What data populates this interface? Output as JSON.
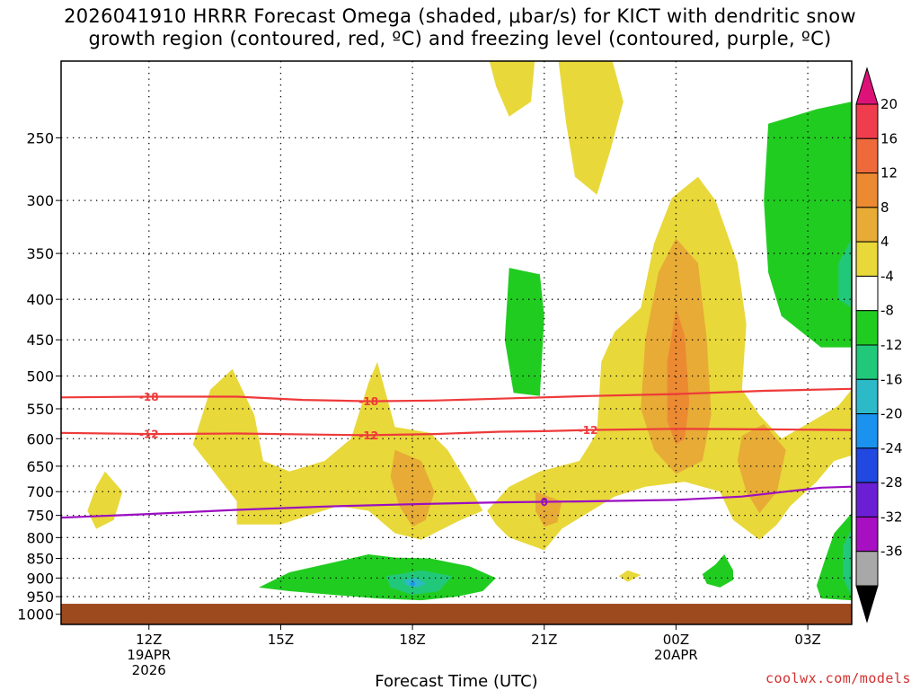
{
  "title_line1": "2026041910 HRRR Forecast Omega (shaded, μbar/s) for KICT with dendritic snow",
  "title_line2": "growth region (contoured, red, ºC) and freezing level (contoured, purple, ºC)",
  "credit": "coolwx.com/models",
  "chart_data": {
    "type": "heatmap",
    "xlabel": "Forecast Time (UTC)",
    "ylabel": "",
    "x_unit": "hours since 2026-04-19 10Z",
    "xlim": [
      0,
      18
    ],
    "y_unit": "hPa",
    "ylim": [
      1030,
      200
    ],
    "y_scale": "log",
    "y_ticks": [
      250,
      300,
      350,
      400,
      450,
      500,
      550,
      600,
      650,
      700,
      750,
      800,
      850,
      900,
      950,
      1000
    ],
    "x_ticks": [
      {
        "x": 2,
        "lines": [
          "12Z",
          "19APR",
          "2026"
        ]
      },
      {
        "x": 5,
        "lines": [
          "15Z"
        ]
      },
      {
        "x": 8,
        "lines": [
          "18Z"
        ]
      },
      {
        "x": 11,
        "lines": [
          "21Z"
        ]
      },
      {
        "x": 14,
        "lines": [
          "00Z",
          "20APR"
        ]
      },
      {
        "x": 17,
        "lines": [
          "03Z"
        ]
      }
    ],
    "colorbar": {
      "ticks": [
        20,
        16,
        12,
        8,
        4,
        -4,
        -8,
        -12,
        -16,
        -20,
        -24,
        -28,
        -32,
        -36
      ],
      "colors": [
        "#f03d4d",
        "#ee6a3b",
        "#ec8a32",
        "#e7ab36",
        "#e8d83a",
        "#ffffff",
        "#21cc21",
        "#22c87a",
        "#2cb9c8",
        "#1b92ee",
        "#2148e0",
        "#6b1fd4",
        "#a60fc2",
        "#a8a8a8"
      ],
      "top_arrow_color": "#dd1278",
      "bottom_arrow_color": "#000000"
    },
    "shaded_regions": [
      {
        "label": "4 to 8",
        "color": "#e8d83a",
        "polygon": [
          [
            1,
            660
          ],
          [
            1.4,
            700
          ],
          [
            1.2,
            760
          ],
          [
            0.8,
            780
          ],
          [
            0.6,
            740
          ],
          [
            0.8,
            690
          ]
        ]
      },
      {
        "label": "4 to 8",
        "color": "#e8d83a",
        "polygon": [
          [
            3,
            610
          ],
          [
            3.4,
            520
          ],
          [
            3.9,
            490
          ],
          [
            4.4,
            560
          ],
          [
            4.6,
            640
          ],
          [
            5.2,
            660
          ],
          [
            6,
            640
          ],
          [
            6.6,
            600
          ],
          [
            7,
            510
          ],
          [
            7.2,
            480
          ],
          [
            7.6,
            580
          ],
          [
            8.4,
            590
          ],
          [
            8.8,
            620
          ],
          [
            9.3,
            690
          ],
          [
            9.6,
            740
          ],
          [
            9.1,
            760
          ],
          [
            8.2,
            805
          ],
          [
            7.6,
            790
          ],
          [
            7,
            740
          ],
          [
            6.3,
            730
          ],
          [
            5,
            770
          ],
          [
            4,
            770
          ],
          [
            4,
            720
          ]
        ]
      },
      {
        "label": "4 to 8",
        "color": "#e8d83a",
        "polygon": [
          [
            9.7,
            740
          ],
          [
            10.2,
            690
          ],
          [
            10.9,
            660
          ],
          [
            11.8,
            640
          ],
          [
            12.2,
            590
          ],
          [
            12.3,
            480
          ],
          [
            12.6,
            440
          ],
          [
            13.2,
            410
          ],
          [
            13.5,
            340
          ],
          [
            13.9,
            298
          ],
          [
            14.5,
            280
          ],
          [
            14.9,
            300
          ],
          [
            15.4,
            360
          ],
          [
            15.6,
            430
          ],
          [
            15.5,
            520
          ],
          [
            15.9,
            560
          ],
          [
            16.4,
            600
          ],
          [
            17.1,
            570
          ],
          [
            17.7,
            545
          ],
          [
            18,
            520
          ],
          [
            18,
            630
          ],
          [
            17.6,
            640
          ],
          [
            17.2,
            680
          ],
          [
            16.6,
            730
          ],
          [
            16.3,
            770
          ],
          [
            15.9,
            805
          ],
          [
            15.3,
            760
          ],
          [
            15,
            700
          ],
          [
            14.2,
            680
          ],
          [
            13.3,
            690
          ],
          [
            12.6,
            710
          ],
          [
            11.4,
            780
          ],
          [
            11,
            830
          ],
          [
            10.2,
            800
          ],
          [
            9.9,
            770
          ]
        ]
      },
      {
        "label": "4 to 8",
        "color": "#e8d83a",
        "polygon": [
          [
            9.7,
            195
          ],
          [
            10.8,
            195
          ],
          [
            10.7,
            225
          ],
          [
            10.2,
            235
          ],
          [
            9.9,
            215
          ]
        ]
      },
      {
        "label": "4 to 8",
        "color": "#e8d83a",
        "polygon": [
          [
            11.3,
            195
          ],
          [
            12.5,
            195
          ],
          [
            12.8,
            225
          ],
          [
            12.5,
            260
          ],
          [
            12.2,
            295
          ],
          [
            11.7,
            280
          ],
          [
            11.5,
            240
          ]
        ]
      },
      {
        "label": "4 to 8",
        "color": "#e8d83a",
        "polygon": [
          [
            12.9,
            880
          ],
          [
            13.2,
            892
          ],
          [
            12.9,
            910
          ],
          [
            12.7,
            895
          ]
        ]
      },
      {
        "label": "8 to 12",
        "color": "#e7ab36",
        "polygon": [
          [
            7.6,
            620
          ],
          [
            8.2,
            640
          ],
          [
            8.5,
            700
          ],
          [
            8.3,
            760
          ],
          [
            8.0,
            775
          ],
          [
            7.7,
            730
          ],
          [
            7.5,
            670
          ]
        ]
      },
      {
        "label": "8 to 12",
        "color": "#e7ab36",
        "polygon": [
          [
            10.8,
            700
          ],
          [
            11.4,
            720
          ],
          [
            11.3,
            765
          ],
          [
            11.0,
            775
          ],
          [
            10.8,
            740
          ]
        ]
      },
      {
        "label": "8 to 12",
        "color": "#e7ab36",
        "polygon": [
          [
            13.3,
            450
          ],
          [
            13.6,
            370
          ],
          [
            14,
            335
          ],
          [
            14.5,
            360
          ],
          [
            14.7,
            450
          ],
          [
            14.8,
            560
          ],
          [
            14.6,
            640
          ],
          [
            14,
            665
          ],
          [
            13.5,
            620
          ],
          [
            13.2,
            550
          ]
        ]
      },
      {
        "label": "8 to 12",
        "color": "#e7ab36",
        "polygon": [
          [
            15.5,
            595
          ],
          [
            16,
            575
          ],
          [
            16.5,
            620
          ],
          [
            16.3,
            700
          ],
          [
            15.9,
            745
          ],
          [
            15.6,
            700
          ],
          [
            15.4,
            640
          ]
        ]
      },
      {
        "label": "12 to 16",
        "color": "#ec8a32",
        "polygon": [
          [
            13.8,
            480
          ],
          [
            14,
            410
          ],
          [
            14.2,
            445
          ],
          [
            14.3,
            540
          ],
          [
            14.2,
            600
          ],
          [
            14,
            610
          ],
          [
            13.8,
            570
          ]
        ]
      },
      {
        "label": "-4 to -8",
        "color": "#21cc21",
        "polygon": [
          [
            16.1,
            240
          ],
          [
            17.2,
            230
          ],
          [
            18,
            225
          ],
          [
            18,
            460
          ],
          [
            17.3,
            460
          ],
          [
            16.4,
            420
          ],
          [
            16.1,
            370
          ],
          [
            16,
            300
          ]
        ]
      },
      {
        "label": "-4 to -8",
        "color": "#21cc21",
        "polygon": [
          [
            10.2,
            365
          ],
          [
            10.9,
            372
          ],
          [
            11.0,
            420
          ],
          [
            10.9,
            530
          ],
          [
            10.3,
            525
          ],
          [
            10.1,
            450
          ]
        ]
      },
      {
        "label": "-4 to -8",
        "color": "#21cc21",
        "polygon": [
          [
            4.5,
            925
          ],
          [
            5.2,
            885
          ],
          [
            6.2,
            860
          ],
          [
            7,
            840
          ],
          [
            7.6,
            848
          ],
          [
            8.4,
            850
          ],
          [
            9.3,
            870
          ],
          [
            9.9,
            900
          ],
          [
            9.6,
            935
          ],
          [
            9,
            950
          ],
          [
            8.2,
            960
          ],
          [
            7.2,
            955
          ],
          [
            6.2,
            945
          ],
          [
            5.2,
            935
          ]
        ]
      },
      {
        "label": "-4 to -8",
        "color": "#21cc21",
        "polygon": [
          [
            14.6,
            890
          ],
          [
            14.9,
            865
          ],
          [
            15.1,
            840
          ],
          [
            15.3,
            880
          ],
          [
            15.3,
            905
          ],
          [
            15.0,
            925
          ],
          [
            14.7,
            915
          ]
        ]
      },
      {
        "label": "-4 to -8",
        "color": "#21cc21",
        "polygon": [
          [
            17.4,
            850
          ],
          [
            17.6,
            790
          ],
          [
            18,
            745
          ],
          [
            18,
            960
          ],
          [
            17.3,
            955
          ],
          [
            17.2,
            920
          ]
        ]
      },
      {
        "label": "-8 to -12",
        "color": "#22c87a",
        "polygon": [
          [
            7.4,
            895
          ],
          [
            8.2,
            880
          ],
          [
            8.9,
            895
          ],
          [
            8.6,
            935
          ],
          [
            8.0,
            945
          ],
          [
            7.5,
            925
          ]
        ]
      },
      {
        "label": "-8 to -12",
        "color": "#22c87a",
        "polygon": [
          [
            17.7,
            360
          ],
          [
            18,
            335
          ],
          [
            18,
            410
          ],
          [
            17.7,
            400
          ]
        ]
      },
      {
        "label": "-8 to -12",
        "color": "#22c87a",
        "polygon": [
          [
            17.8,
            820
          ],
          [
            18,
            780
          ],
          [
            18,
            950
          ],
          [
            17.8,
            900
          ]
        ]
      },
      {
        "label": "-12 to -16",
        "color": "#2cb9c8",
        "polygon": [
          [
            7.8,
            905
          ],
          [
            8.1,
            900
          ],
          [
            8.3,
            915
          ],
          [
            8.1,
            925
          ],
          [
            7.85,
            918
          ]
        ]
      },
      {
        "label": "-16 to -20",
        "color": "#1b92ee",
        "polygon": [
          [
            7.95,
            912
          ],
          [
            8.05,
            910
          ],
          [
            8.05,
            920
          ],
          [
            7.95,
            920
          ]
        ]
      }
    ],
    "contours": [
      {
        "name": "-18 ºC",
        "level": "-18",
        "color": "#ee3a3a",
        "points": [
          [
            0,
            532
          ],
          [
            2,
            531
          ],
          [
            4,
            531
          ],
          [
            5.5,
            536
          ],
          [
            7,
            538
          ],
          [
            8.5,
            537
          ],
          [
            10,
            534
          ],
          [
            12,
            530
          ],
          [
            14,
            527
          ],
          [
            16,
            522
          ],
          [
            18,
            519
          ]
        ],
        "labels_x": [
          2,
          7
        ]
      },
      {
        "name": "-12 ºC",
        "level": "-12",
        "color": "#ee3a3a",
        "points": [
          [
            0,
            590
          ],
          [
            2,
            592
          ],
          [
            4,
            591
          ],
          [
            6,
            593
          ],
          [
            7,
            594
          ],
          [
            8.5,
            592
          ],
          [
            10,
            588
          ],
          [
            11,
            587
          ],
          [
            12,
            585
          ],
          [
            14,
            583
          ],
          [
            16,
            584
          ],
          [
            18,
            585
          ]
        ],
        "labels_x": [
          2,
          7,
          12
        ]
      },
      {
        "name": "0 ºC freezing level",
        "level": "0",
        "color": "#9b0ec0",
        "points": [
          [
            0,
            755
          ],
          [
            2,
            747
          ],
          [
            4,
            738
          ],
          [
            6,
            731
          ],
          [
            8,
            726
          ],
          [
            10,
            722
          ],
          [
            12,
            720
          ],
          [
            14,
            717
          ],
          [
            15.5,
            710
          ],
          [
            16.5,
            700
          ],
          [
            17.3,
            692
          ],
          [
            18,
            690
          ]
        ],
        "labels_x": [
          11
        ]
      }
    ],
    "ground": {
      "from_hPa": 970,
      "color": "#9e4a1f"
    }
  }
}
